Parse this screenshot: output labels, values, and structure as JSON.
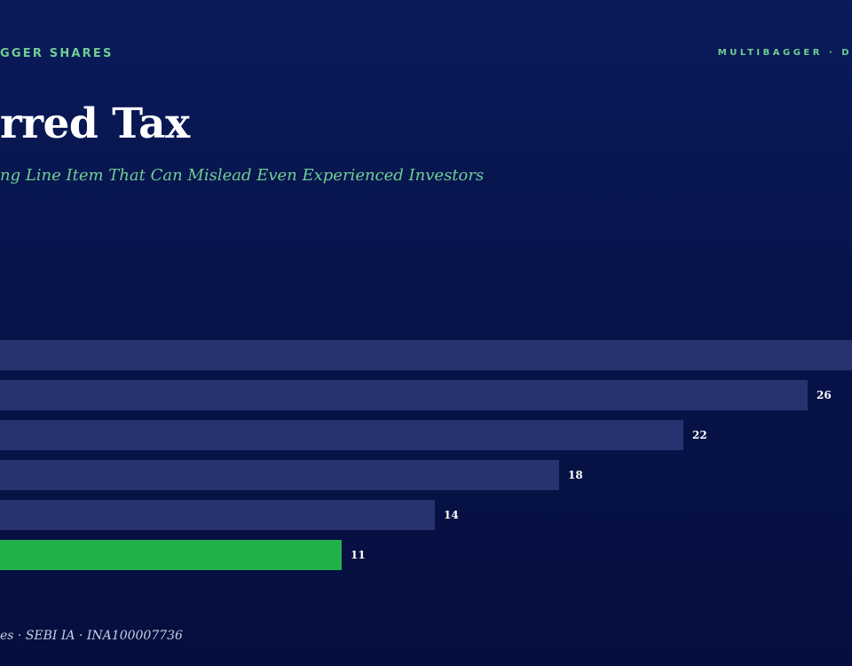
{
  "header": {
    "brand_left": "GGER SHARES",
    "brand_right": "MULTIBAGGER · D"
  },
  "title": "rred Tax",
  "subtitle": "ng Line Item That Can Mislead Even Experienced Investors",
  "footer": "es · SEBI IA · INA100007736",
  "colors": {
    "background": "#07134a",
    "bar_default": "#27326f",
    "bar_highlight": "#22b24c",
    "accent_text": "#6fcf92"
  },
  "chart_data": {
    "type": "bar",
    "orientation": "horizontal",
    "values": [
      null,
      26,
      22,
      18,
      14,
      11
    ],
    "labels": [
      "",
      "26",
      "22",
      "18",
      "14",
      "11"
    ],
    "highlight_index": 5
  }
}
